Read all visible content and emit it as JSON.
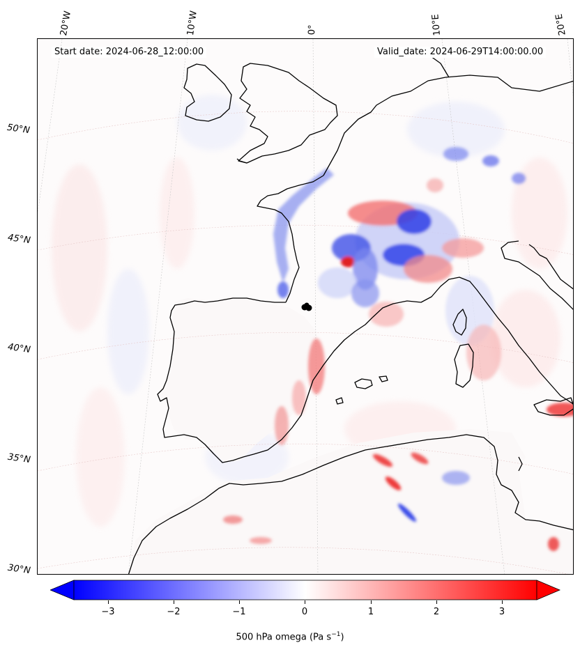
{
  "header": {
    "start_date": "Start date: 2024-06-28_12:00:00",
    "valid_date": "Valid_date: 2024-06-29T14:00:00.00"
  },
  "map": {
    "variable": "500 hPa omega",
    "unit": "Pa s",
    "unit_exponent": "−1",
    "longitude_labels": [
      "20°W",
      "10°W",
      "0°",
      "10°E",
      "20°E"
    ],
    "latitude_labels": [
      "50°N",
      "45°N",
      "40°N",
      "35°N",
      "30°N"
    ]
  },
  "colorbar": {
    "colormap": "bwr",
    "colors": {
      "min": "#0000ff",
      "mid": "#ffffff",
      "max": "#ff0000"
    },
    "range": [
      -3.7,
      3.7
    ],
    "ticks": [
      "−3",
      "−2",
      "−1",
      "0",
      "1",
      "2",
      "3"
    ],
    "extend": "both"
  }
}
